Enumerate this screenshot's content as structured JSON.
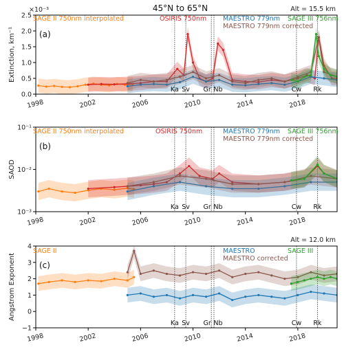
{
  "title": "45°N to 65°N",
  "colors": {
    "sage2": "#ff7f0e",
    "osiris": "#d62728",
    "maestro": "#1f77b4",
    "maestro_corr": "#8c564b",
    "sage3": "#2ca02c"
  },
  "events": [
    {
      "label": "Ka",
      "year": 2008.6
    },
    {
      "label": "Sv",
      "year": 2009.45
    },
    {
      "label": "Gr",
      "year": 2011.4
    },
    {
      "label": "Nb",
      "year": 2011.6
    },
    {
      "label": "Cw",
      "year": 2017.9
    },
    {
      "label": "Rk",
      "year": 2019.5
    }
  ],
  "chart_data": [
    {
      "type": "line",
      "panel": "(a)",
      "altitude": "Alt = 15.5 km",
      "ylabel": "Extinction, km⁻¹",
      "yscale_label": "×10⁻³",
      "xlim": [
        1998,
        2021
      ],
      "ylim": [
        0,
        2.5
      ],
      "xticks": [
        "1998",
        "2002",
        "2006",
        "2010",
        "2014",
        "2018"
      ],
      "yticks": [
        "0.0",
        "0.5",
        "1.0",
        "1.5",
        "2.0",
        "2.5"
      ],
      "grid": false,
      "legend": [
        "SAGE II 750nm interpolated",
        "OSIRIS 750nm",
        "MAESTRO 779nm",
        "MAESTRO 779nm corrected",
        "SAGE III 756nm"
      ],
      "series": [
        {
          "name": "SAGE II 750nm interpolated",
          "key": "sage2",
          "x": [
            1998.2,
            1998.8,
            1999.4,
            2000.0,
            2000.6,
            2001.2,
            2001.8,
            2002.4,
            2003.0,
            2003.6,
            2004.2,
            2004.8,
            2005.4
          ],
          "y": [
            0.27,
            0.24,
            0.26,
            0.23,
            0.22,
            0.25,
            0.3,
            0.33,
            0.3,
            0.28,
            0.32,
            0.3,
            0.31
          ]
        },
        {
          "name": "OSIRIS 750nm",
          "key": "osiris",
          "x": [
            2002.0,
            2003.0,
            2004.0,
            2005.0,
            2006.0,
            2007.0,
            2008.0,
            2008.8,
            2009.3,
            2009.6,
            2010.0,
            2010.5,
            2011.0,
            2011.5,
            2011.9,
            2012.3,
            2013.0,
            2014.0,
            2015.0,
            2016.0,
            2017.0,
            2018.0,
            2018.7,
            2019.3,
            2019.6,
            2020.0,
            2020.6,
            2021.0
          ],
          "y": [
            0.3,
            0.32,
            0.31,
            0.33,
            0.35,
            0.4,
            0.4,
            0.8,
            0.6,
            1.9,
            1.0,
            0.5,
            0.4,
            0.5,
            1.6,
            1.4,
            0.45,
            0.4,
            0.38,
            0.45,
            0.4,
            0.5,
            0.6,
            0.5,
            1.8,
            0.9,
            0.5,
            0.5
          ]
        },
        {
          "name": "MAESTRO 779nm",
          "key": "maestro",
          "x": [
            2005.0,
            2006.0,
            2007.0,
            2008.0,
            2009.0,
            2010.0,
            2011.0,
            2012.0,
            2013.0,
            2014.0,
            2015.0,
            2016.0,
            2017.0,
            2018.0,
            2019.0,
            2020.0,
            2021.0
          ],
          "y": [
            0.25,
            0.3,
            0.32,
            0.3,
            0.38,
            0.55,
            0.4,
            0.45,
            0.3,
            0.28,
            0.32,
            0.35,
            0.3,
            0.4,
            0.55,
            0.5,
            0.45
          ]
        },
        {
          "name": "MAESTRO 779nm corrected",
          "key": "maestro_corr",
          "x": [
            2005.0,
            2006.0,
            2007.0,
            2008.0,
            2009.0,
            2010.0,
            2011.0,
            2012.0,
            2013.0,
            2014.0,
            2015.0,
            2016.0,
            2017.0,
            2018.0,
            2019.0,
            2019.6,
            2020.0,
            2021.0
          ],
          "y": [
            0.35,
            0.45,
            0.4,
            0.45,
            0.55,
            0.7,
            0.5,
            0.6,
            0.4,
            0.35,
            0.45,
            0.5,
            0.4,
            0.55,
            0.7,
            1.8,
            0.7,
            0.55
          ]
        },
        {
          "name": "SAGE III 756nm",
          "key": "sage3",
          "x": [
            2017.5,
            2018.0,
            2018.5,
            2019.0,
            2019.4,
            2019.6,
            2020.0,
            2020.5,
            2021.0
          ],
          "y": [
            0.45,
            0.4,
            0.55,
            0.6,
            1.9,
            1.2,
            0.8,
            0.6,
            0.55
          ]
        }
      ]
    },
    {
      "type": "line",
      "panel": "(b)",
      "ylabel": "SAOD",
      "yscale": "log",
      "xlim": [
        1998,
        2021
      ],
      "ylim": [
        0.001,
        0.1
      ],
      "xticks": [
        "1998",
        "2002",
        "2006",
        "2010",
        "2014",
        "2018"
      ],
      "yticks": [
        "10⁻³",
        "10⁻²",
        "10⁻¹"
      ],
      "grid": false,
      "legend": [
        "SAGE II 750nm interpolated",
        "OSIRIS 750nm",
        "MAESTRO 779nm",
        "MAESTRO 779nm corrected",
        "SAGE III 756nm"
      ],
      "series": [
        {
          "name": "SAGE II 750nm interpolated",
          "key": "sage2",
          "x": [
            1998.2,
            1999.0,
            2000.0,
            2001.0,
            2002.0,
            2003.0,
            2004.0,
            2005.0,
            2005.5
          ],
          "y": [
            0.003,
            0.0035,
            0.003,
            0.0028,
            0.0032,
            0.0035,
            0.0033,
            0.0036,
            0.0034
          ]
        },
        {
          "name": "OSIRIS 750nm",
          "key": "osiris",
          "x": [
            2002.0,
            2004.0,
            2006.0,
            2007.0,
            2008.0,
            2009.0,
            2009.7,
            2010.5,
            2011.5,
            2012.0,
            2013.0,
            2015.0,
            2017.0,
            2018.5,
            2019.5,
            2020.0,
            2021.0
          ],
          "y": [
            0.0035,
            0.0038,
            0.0042,
            0.0045,
            0.005,
            0.008,
            0.012,
            0.007,
            0.006,
            0.008,
            0.005,
            0.0045,
            0.005,
            0.006,
            0.012,
            0.008,
            0.006
          ]
        },
        {
          "name": "MAESTRO 779nm",
          "key": "maestro",
          "x": [
            2005.0,
            2007.0,
            2009.0,
            2011.0,
            2013.0,
            2015.0,
            2017.0,
            2019.0,
            2021.0
          ],
          "y": [
            0.003,
            0.004,
            0.005,
            0.004,
            0.0035,
            0.0035,
            0.004,
            0.005,
            0.005
          ]
        },
        {
          "name": "MAESTRO 779nm corrected",
          "key": "maestro_corr",
          "x": [
            2005.0,
            2007.0,
            2009.0,
            2011.0,
            2013.0,
            2015.0,
            2017.0,
            2019.0,
            2021.0
          ],
          "y": [
            0.004,
            0.005,
            0.007,
            0.006,
            0.0045,
            0.0045,
            0.005,
            0.007,
            0.006
          ]
        },
        {
          "name": "SAGE III 756nm",
          "key": "sage3",
          "x": [
            2017.5,
            2018.5,
            2019.5,
            2020.0,
            2021.0
          ],
          "y": [
            0.0055,
            0.006,
            0.013,
            0.008,
            0.006
          ]
        }
      ]
    },
    {
      "type": "line",
      "panel": "(c)",
      "altitude": "Alt = 12.0 km",
      "ylabel": "Angstrom Exponent",
      "xlim": [
        1998,
        2021
      ],
      "ylim": [
        -1,
        4
      ],
      "xticks": [
        "1998",
        "2002",
        "2006",
        "2010",
        "2014",
        "2018"
      ],
      "yticks": [
        "−1",
        "0",
        "1",
        "2",
        "3",
        "4"
      ],
      "grid": false,
      "legend": [
        "SAGE II",
        "MAESTRO",
        "MAESTRO corrected",
        "SAGE III"
      ],
      "series": [
        {
          "name": "SAGE II",
          "key": "sage2",
          "x": [
            1998.2,
            1999.0,
            2000.0,
            2001.0,
            2002.0,
            2003.0,
            2004.0,
            2005.0,
            2005.5
          ],
          "y": [
            1.7,
            1.8,
            1.9,
            1.8,
            1.9,
            1.85,
            2.0,
            1.9,
            2.1
          ]
        },
        {
          "name": "MAESTRO",
          "key": "maestro",
          "x": [
            2005.0,
            2006.0,
            2007.0,
            2008.0,
            2009.0,
            2010.0,
            2011.0,
            2012.0,
            2013.0,
            2014.0,
            2015.0,
            2016.0,
            2017.0,
            2018.0,
            2019.0,
            2020.0,
            2021.0
          ],
          "y": [
            1.0,
            1.1,
            0.9,
            1.0,
            0.8,
            1.0,
            0.9,
            1.1,
            0.7,
            0.9,
            1.0,
            0.9,
            0.8,
            1.0,
            1.2,
            1.1,
            1.0
          ]
        },
        {
          "name": "MAESTRO corrected",
          "key": "maestro_corr",
          "x": [
            2005.0,
            2005.5,
            2006.0,
            2007.0,
            2008.0,
            2009.0,
            2010.0,
            2011.0,
            2012.0,
            2013.0,
            2014.0,
            2015.0,
            2016.0,
            2017.0,
            2018.0,
            2019.0,
            2020.0,
            2021.0
          ],
          "y": [
            2.4,
            3.7,
            2.3,
            2.5,
            2.3,
            2.2,
            2.4,
            2.3,
            2.5,
            2.1,
            2.3,
            2.4,
            2.2,
            2.0,
            2.1,
            2.4,
            2.2,
            2.3
          ]
        },
        {
          "name": "SAGE III",
          "key": "sage3",
          "x": [
            2017.5,
            2018.0,
            2018.5,
            2019.0,
            2019.5,
            2020.0,
            2020.5,
            2021.0
          ],
          "y": [
            1.7,
            1.8,
            1.9,
            2.0,
            2.1,
            2.0,
            2.1,
            2.0
          ]
        }
      ]
    }
  ]
}
